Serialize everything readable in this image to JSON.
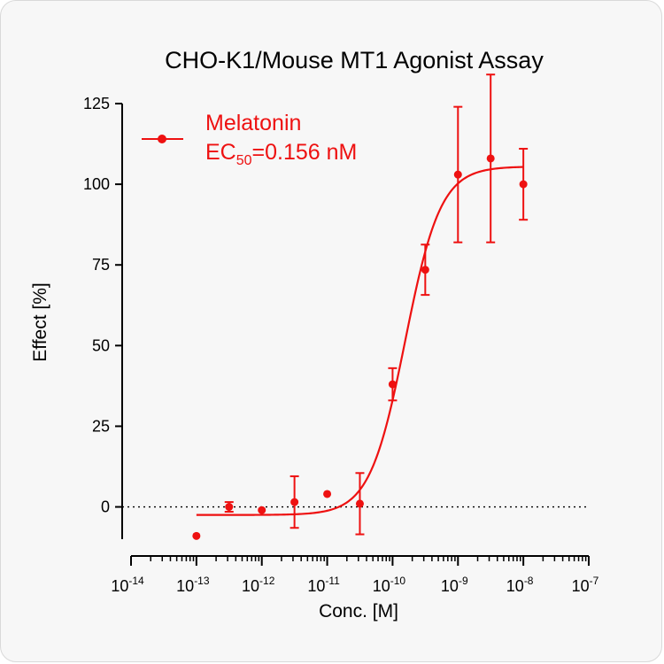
{
  "chart_data": {
    "type": "scatter",
    "title": "CHO-K1/Mouse MT1 Agonist Assay",
    "xlabel": "Conc. [M]",
    "ylabel": "Effect  [%]",
    "x_scale": "log",
    "xlim": [
      1e-14,
      1e-07
    ],
    "x_ticks": [
      {
        "base": "10",
        "exp": "-14"
      },
      {
        "base": "10",
        "exp": "-13"
      },
      {
        "base": "10",
        "exp": "-12"
      },
      {
        "base": "10",
        "exp": "-11"
      },
      {
        "base": "10",
        "exp": "-10"
      },
      {
        "base": "10",
        "exp": "-9"
      },
      {
        "base": "10",
        "exp": "-8"
      },
      {
        "base": "10",
        "exp": "-7"
      }
    ],
    "ylim": [
      -10,
      125
    ],
    "y_ticks": [
      "0",
      "25",
      "50",
      "75",
      "100",
      "125"
    ],
    "baseline": 0,
    "grid": false,
    "legend_position": "top-left",
    "color": "#ee1111",
    "series": [
      {
        "name": "Melatonin",
        "annotation": {
          "prefix": "EC",
          "sub": "50",
          "suffix": "=0.156 nM"
        },
        "points": [
          {
            "x": 1e-13,
            "y": -9,
            "err": null
          },
          {
            "x": 3.16e-13,
            "y": 0,
            "err": 1.5
          },
          {
            "x": 1e-12,
            "y": -1,
            "err": null
          },
          {
            "x": 3.16e-12,
            "y": 1.5,
            "err": 8
          },
          {
            "x": 1e-11,
            "y": 4,
            "err": null
          },
          {
            "x": 3.16e-11,
            "y": 1,
            "err": 9.5
          },
          {
            "x": 1e-10,
            "y": 38,
            "err": 5
          },
          {
            "x": 3.16e-10,
            "y": 73.5,
            "err": 7.8
          },
          {
            "x": 1e-09,
            "y": 103,
            "err": 21
          },
          {
            "x": 3.16e-09,
            "y": 108,
            "err": 26
          },
          {
            "x": 1e-08,
            "y": 100,
            "err": 11
          }
        ],
        "fit": {
          "bottom": -2.5,
          "top": 105.5,
          "ec50": 1.56e-10,
          "hill": 1.6,
          "x_from": 1e-13,
          "x_to": 1e-08
        }
      }
    ]
  }
}
